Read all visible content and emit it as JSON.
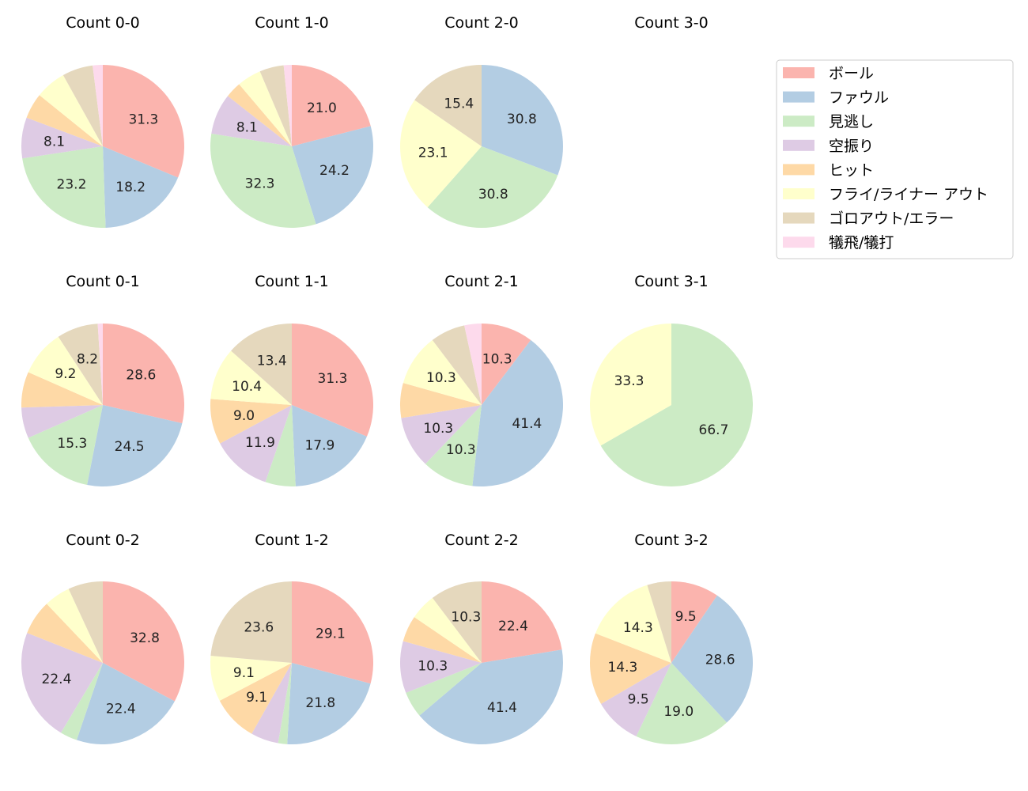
{
  "chart_data": {
    "type": "pie",
    "categories": [
      "ボール",
      "ファウル",
      "見逃し",
      "空振り",
      "ヒット",
      "フライ/ライナー アウト",
      "ゴロアウト/エラー",
      "犠飛/犠打"
    ],
    "colors": [
      "#fbb4ae",
      "#b3cde3",
      "#ccebc5",
      "#decbe4",
      "#fed9a6",
      "#ffffcc",
      "#e5d8bd",
      "#fddaec"
    ],
    "legend_placement": "top-right",
    "start": "top, clockwise",
    "charts": [
      {
        "title": "Count 0-0",
        "values": [
          31.3,
          18.2,
          23.2,
          8.1,
          5.1,
          6.1,
          6.1,
          2.0
        ]
      },
      {
        "title": "Count 1-0",
        "values": [
          21.0,
          24.2,
          32.3,
          8.1,
          3.2,
          4.8,
          4.8,
          1.6
        ]
      },
      {
        "title": "Count 2-0",
        "values": [
          0,
          30.8,
          30.8,
          0,
          0,
          23.1,
          15.4,
          0
        ]
      },
      {
        "title": "Count 3-0",
        "values": []
      },
      {
        "title": "Count 0-1",
        "values": [
          28.6,
          24.5,
          15.3,
          6.1,
          7.1,
          9.2,
          8.2,
          1.0
        ]
      },
      {
        "title": "Count 1-1",
        "values": [
          31.3,
          17.9,
          6.0,
          11.9,
          9.0,
          10.4,
          13.4,
          0
        ]
      },
      {
        "title": "Count 2-1",
        "values": [
          10.3,
          41.4,
          10.3,
          10.3,
          6.9,
          10.3,
          6.9,
          3.4
        ]
      },
      {
        "title": "Count 3-1",
        "values": [
          0,
          0,
          66.7,
          0,
          0,
          33.3,
          0,
          0
        ]
      },
      {
        "title": "Count 0-2",
        "values": [
          32.8,
          22.4,
          3.4,
          22.4,
          6.9,
          5.2,
          6.9,
          0
        ]
      },
      {
        "title": "Count 1-2",
        "values": [
          29.1,
          21.8,
          1.8,
          5.5,
          9.1,
          9.1,
          23.6,
          0
        ]
      },
      {
        "title": "Count 2-2",
        "values": [
          22.4,
          41.4,
          5.2,
          10.3,
          5.2,
          5.2,
          10.3,
          0
        ]
      },
      {
        "title": "Count 3-2",
        "values": [
          9.5,
          28.6,
          19.0,
          9.5,
          14.3,
          14.3,
          4.8,
          0
        ]
      }
    ]
  }
}
